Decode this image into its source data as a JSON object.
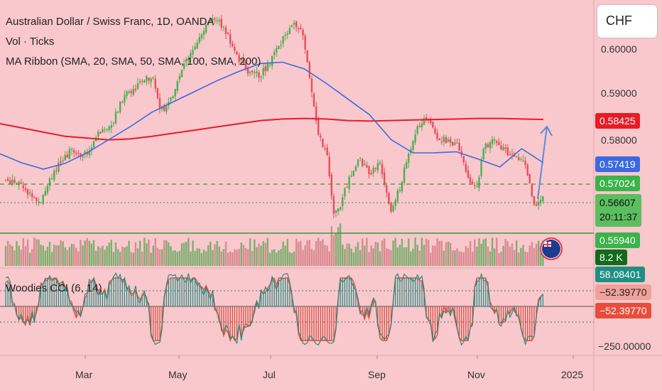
{
  "legend": {
    "symbol_line": "Australian Dollar / Swiss Franc, 1D, OANDA",
    "volume_line": "Vol · Ticks",
    "ribbon_line": "MA Ribbon (SMA, 20, SMA, 50, SMA, 100, SMA, 200)",
    "cci_line": "Woodies CCI (6, 14)"
  },
  "currency_box": "CHF",
  "price_axis": {
    "ticks": [
      "0.60000",
      "0.59000",
      "0.58000"
    ],
    "tags": {
      "ma200": "0.58425",
      "ma50": "0.57419",
      "level": "0.57024",
      "last_price": "0.56607",
      "countdown": "20:11:37",
      "support": "0.55940",
      "volume": "8.2 K"
    }
  },
  "cci_axis": {
    "tags": {
      "cci": "58.08401",
      "turbo1": "−52.39770",
      "turbo2": "−52.39770"
    },
    "ticks": [
      "−250.00000"
    ]
  },
  "time_axis": [
    "Mar",
    "May",
    "Jul",
    "Sep",
    "Nov",
    "2025"
  ],
  "colors": {
    "background": "#f8c8cc",
    "up": "#4caf50",
    "down": "#e84d5b",
    "ma50": "#3b6ae0",
    "ma200": "#e81c24",
    "support": "#2e9e3e",
    "arrow": "#5c8ad6"
  },
  "chart_data": {
    "type": "candlestick",
    "series": [
      {
        "name": "MA Ribbon SMA 200",
        "values": [
          0.58306,
          0.58211,
          0.58115,
          0.5802,
          0.5798,
          0.5794,
          0.57961,
          0.5802,
          0.58092,
          0.58163,
          0.58235,
          0.58306,
          0.58378,
          0.58413,
          0.58425,
          0.58413,
          0.58378,
          0.58366,
          0.58378,
          0.5839,
          0.58401,
          0.58413,
          0.58425,
          0.58425,
          0.58413,
          0.58401
        ]
      },
      {
        "name": "MA Ribbon SMA 50",
        "values": [
          0.57622,
          0.57419,
          0.57275,
          0.57407,
          0.57646,
          0.57944,
          0.58242,
          0.58569,
          0.58808,
          0.59046,
          0.59285,
          0.59493,
          0.59672,
          0.59702,
          0.59552,
          0.59225,
          0.58867,
          0.5851,
          0.57944,
          0.57645,
          0.57646,
          0.57669,
          0.57503,
          0.57324,
          0.57741,
          0.57419
        ]
      }
    ],
    "price_range": [
      0.555,
      0.6095
    ]
  }
}
